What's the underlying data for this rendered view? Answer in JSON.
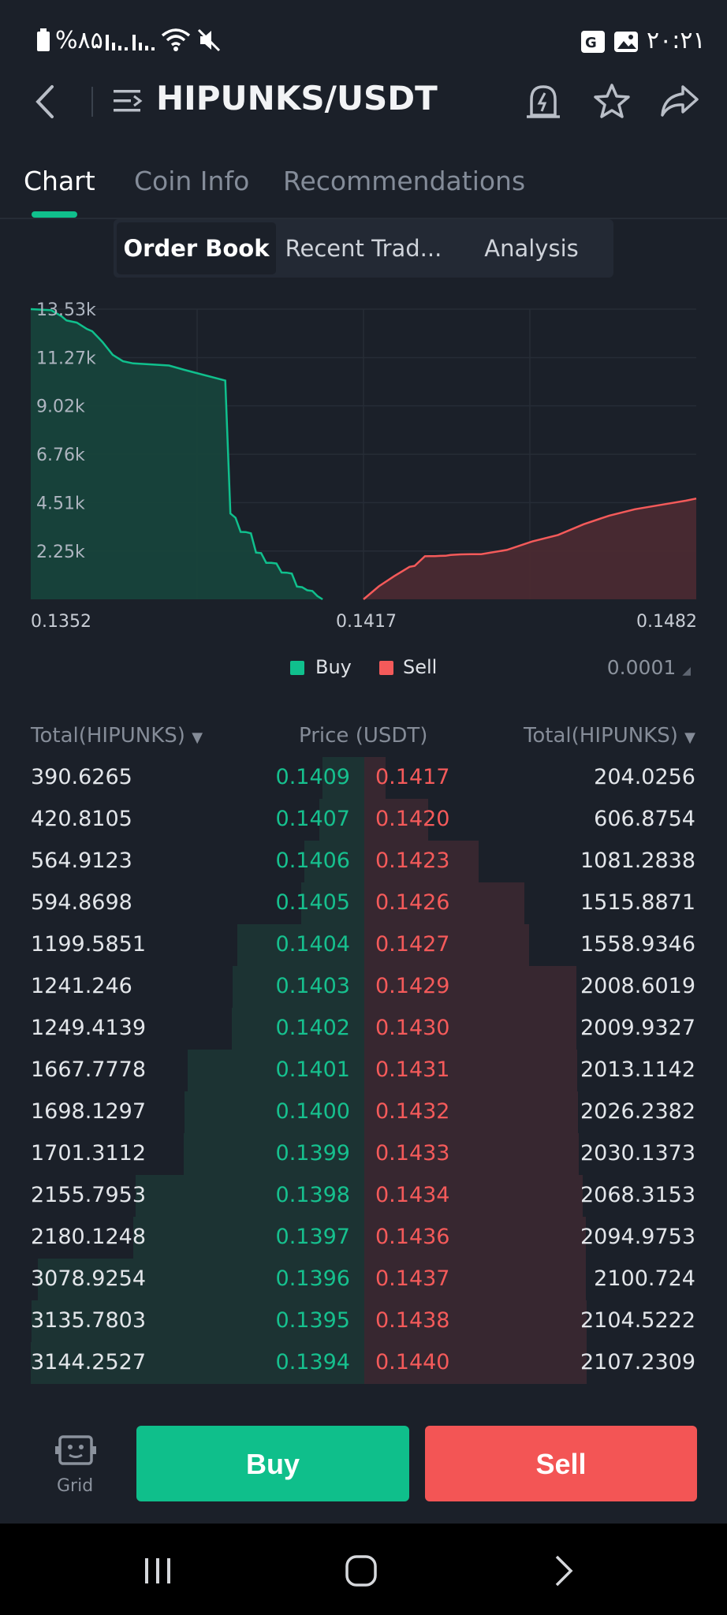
{
  "status_bar": {
    "battery_text": "%۸۵",
    "time": "۲۰:۲۱"
  },
  "header": {
    "title": "HIPUNKS/USDT",
    "icons": [
      "back-icon",
      "menu-list-icon",
      "price-alert-icon",
      "star-icon",
      "share-icon"
    ]
  },
  "tabs": [
    {
      "label": "Chart",
      "active": true
    },
    {
      "label": "Coin Info",
      "active": false
    },
    {
      "label": "Recommendations",
      "active": false
    }
  ],
  "segments": [
    {
      "label": "Order Book",
      "active": true
    },
    {
      "label": "Recent Trad...",
      "active": false
    },
    {
      "label": "Analysis",
      "active": false
    }
  ],
  "chart_data": {
    "type": "area",
    "y_tick_labels": [
      "13.53k",
      "11.27k",
      "9.02k",
      "6.76k",
      "4.51k",
      "2.25k"
    ],
    "y_ticks": [
      13530,
      11270,
      9020,
      6760,
      4510,
      2250
    ],
    "ylim": [
      0,
      13530
    ],
    "x_tick_labels": [
      "0.1352",
      "0.1417",
      "0.1482"
    ],
    "xlim": [
      0.1352,
      0.1482
    ],
    "series": [
      {
        "name": "Buy",
        "color": "#10c08d",
        "x": [
          0.1352,
          0.1356,
          0.1358,
          0.1359,
          0.1361,
          0.1363,
          0.1364,
          0.1366,
          0.1368,
          0.137,
          0.1372,
          0.1379,
          0.1382,
          0.139,
          0.1391,
          0.1392,
          0.1393,
          0.1394,
          0.1395,
          0.1396,
          0.1397,
          0.1398,
          0.1399,
          0.14,
          0.1401,
          0.1402,
          0.1403,
          0.1404,
          0.1405,
          0.1406,
          0.1407,
          0.1408,
          0.1409
        ],
        "y": [
          13530,
          13480,
          13200,
          13000,
          12900,
          12600,
          12500,
          12000,
          11400,
          11100,
          11000,
          10900,
          10700,
          10200,
          4000,
          3800,
          3144,
          3136,
          3079,
          2180,
          2156,
          1701,
          1698,
          1668,
          1249,
          1241,
          1200,
          595,
          565,
          421,
          391,
          150,
          0
        ]
      },
      {
        "name": "Sell",
        "color": "#f45a5a",
        "x": [
          0.1417,
          0.142,
          0.1423,
          0.1426,
          0.1427,
          0.1429,
          0.143,
          0.1431,
          0.1432,
          0.1433,
          0.1434,
          0.1436,
          0.1437,
          0.1438,
          0.144,
          0.1445,
          0.145,
          0.1455,
          0.146,
          0.1465,
          0.147,
          0.1475,
          0.148,
          0.1482
        ],
        "y": [
          0,
          607,
          1081,
          1516,
          1559,
          2009,
          2010,
          2013,
          2026,
          2030,
          2068,
          2095,
          2101,
          2105,
          2107,
          2300,
          2700,
          3000,
          3500,
          3900,
          4200,
          4400,
          4600,
          4700
        ]
      }
    ],
    "legend": [
      "Buy",
      "Sell"
    ],
    "legend_position": "bottom-center",
    "grid": true
  },
  "legend": {
    "buy": "Buy",
    "sell": "Sell",
    "precision": "0.0001"
  },
  "order_book": {
    "headers": {
      "total_left": "Total(HIPUNKS)",
      "price": "Price (USDT)",
      "total_right": "Total(HIPUNKS)"
    },
    "max_total": 3144.2527,
    "rows": [
      {
        "bid_total": "390.6265",
        "bid_price": "0.1409",
        "ask_price": "0.1417",
        "ask_total": "204.0256",
        "bid_depth": 390.6265,
        "ask_depth": 204.0256
      },
      {
        "bid_total": "420.8105",
        "bid_price": "0.1407",
        "ask_price": "0.1420",
        "ask_total": "606.8754",
        "bid_depth": 420.8105,
        "ask_depth": 606.8754
      },
      {
        "bid_total": "564.9123",
        "bid_price": "0.1406",
        "ask_price": "0.1423",
        "ask_total": "1081.2838",
        "bid_depth": 564.9123,
        "ask_depth": 1081.2838
      },
      {
        "bid_total": "594.8698",
        "bid_price": "0.1405",
        "ask_price": "0.1426",
        "ask_total": "1515.8871",
        "bid_depth": 594.8698,
        "ask_depth": 1515.8871
      },
      {
        "bid_total": "1199.5851",
        "bid_price": "0.1404",
        "ask_price": "0.1427",
        "ask_total": "1558.9346",
        "bid_depth": 1199.5851,
        "ask_depth": 1558.9346
      },
      {
        "bid_total": "1241.246",
        "bid_price": "0.1403",
        "ask_price": "0.1429",
        "ask_total": "2008.6019",
        "bid_depth": 1241.246,
        "ask_depth": 2008.6019
      },
      {
        "bid_total": "1249.4139",
        "bid_price": "0.1402",
        "ask_price": "0.1430",
        "ask_total": "2009.9327",
        "bid_depth": 1249.4139,
        "ask_depth": 2009.9327
      },
      {
        "bid_total": "1667.7778",
        "bid_price": "0.1401",
        "ask_price": "0.1431",
        "ask_total": "2013.1142",
        "bid_depth": 1667.7778,
        "ask_depth": 2013.1142
      },
      {
        "bid_total": "1698.1297",
        "bid_price": "0.1400",
        "ask_price": "0.1432",
        "ask_total": "2026.2382",
        "bid_depth": 1698.1297,
        "ask_depth": 2026.2382
      },
      {
        "bid_total": "1701.3112",
        "bid_price": "0.1399",
        "ask_price": "0.1433",
        "ask_total": "2030.1373",
        "bid_depth": 1701.3112,
        "ask_depth": 2030.1373
      },
      {
        "bid_total": "2155.7953",
        "bid_price": "0.1398",
        "ask_price": "0.1434",
        "ask_total": "2068.3153",
        "bid_depth": 2155.7953,
        "ask_depth": 2068.3153
      },
      {
        "bid_total": "2180.1248",
        "bid_price": "0.1397",
        "ask_price": "0.1436",
        "ask_total": "2094.9753",
        "bid_depth": 2180.1248,
        "ask_depth": 2094.9753
      },
      {
        "bid_total": "3078.9254",
        "bid_price": "0.1396",
        "ask_price": "0.1437",
        "ask_total": "2100.724",
        "bid_depth": 3078.9254,
        "ask_depth": 2100.724
      },
      {
        "bid_total": "3135.7803",
        "bid_price": "0.1395",
        "ask_price": "0.1438",
        "ask_total": "2104.5222",
        "bid_depth": 3135.7803,
        "ask_depth": 2104.5222
      },
      {
        "bid_total": "3144.2527",
        "bid_price": "0.1394",
        "ask_price": "0.1440",
        "ask_total": "2107.2309",
        "bid_depth": 3144.2527,
        "ask_depth": 2107.2309
      }
    ]
  },
  "bottom": {
    "grid_label": "Grid",
    "buy_label": "Buy",
    "sell_label": "Sell",
    "buy_color": "#0fbf8b",
    "sell_color": "#f35555"
  }
}
